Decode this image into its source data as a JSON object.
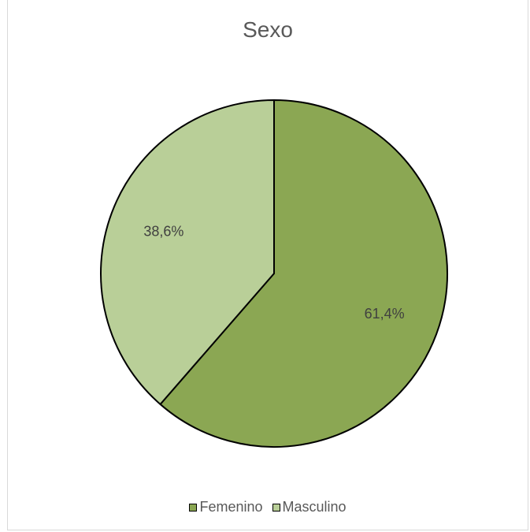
{
  "chart_data": {
    "type": "pie",
    "title": "Sexo",
    "slices": [
      {
        "label": "Femenino",
        "value": 61.4,
        "value_label": "61,4%",
        "color": "#8ba753"
      },
      {
        "label": "Masculino",
        "value": 38.6,
        "value_label": "38,6%",
        "color": "#b9cf98"
      }
    ],
    "legend_position": "bottom",
    "start_angle": "12 o'clock",
    "direction": "clockwise"
  }
}
